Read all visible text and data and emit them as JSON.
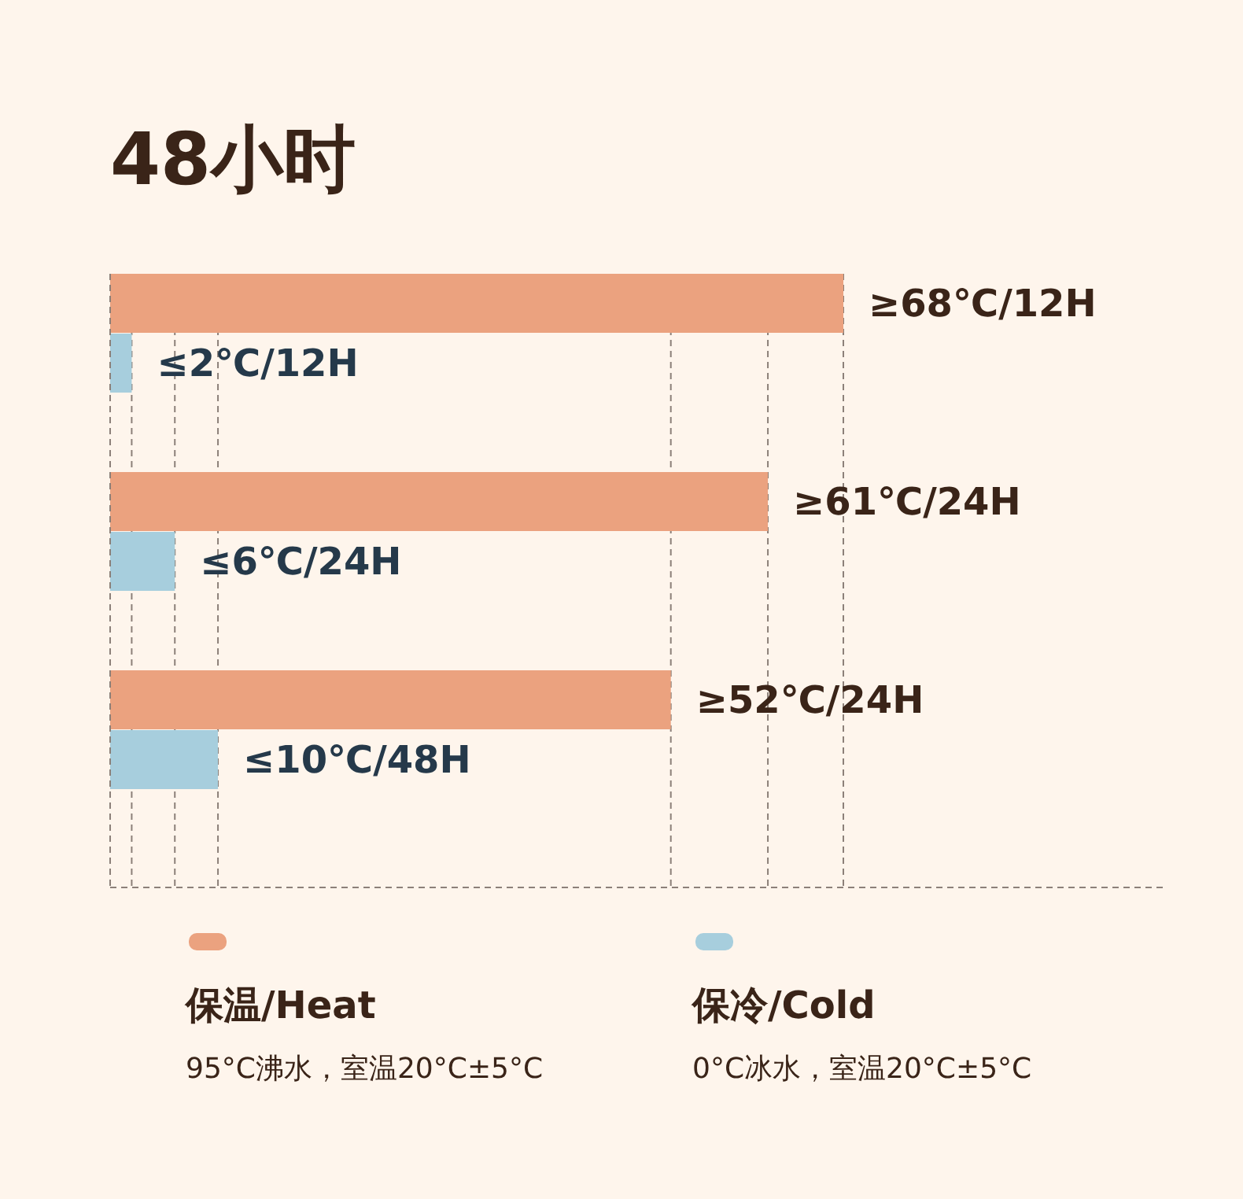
{
  "chart_data": {
    "type": "bar",
    "orientation": "horizontal",
    "xlim": [
      0,
      68
    ],
    "title": "48小时",
    "categories": [
      null,
      null,
      null
    ],
    "series": [
      {
        "name": "保温/Heat",
        "color": "#eba27f",
        "values": [
          68,
          61,
          52
        ],
        "value_labels": [
          "≥68℃/12H",
          "≥61℃/24H",
          "≥52℃/24H"
        ]
      },
      {
        "name": "保冷/Cold",
        "color": "#a7cedd",
        "values": [
          2,
          6,
          10
        ],
        "value_labels": [
          "≤2℃/12H",
          "≤6℃/24H",
          "≤10℃/48H"
        ]
      }
    ],
    "ref_lines": [
      {
        "axis": "x",
        "value": 2,
        "line_style": "dashed",
        "color": "#8c8079"
      },
      {
        "axis": "x",
        "value": 6,
        "line_style": "dashed",
        "color": "#8c8079"
      },
      {
        "axis": "x",
        "value": 10,
        "line_style": "dashed",
        "color": "#8c8079"
      },
      {
        "axis": "x",
        "value": 52,
        "line_style": "dashed",
        "color": "#8c8079"
      },
      {
        "axis": "x",
        "value": 61,
        "line_style": "dashed",
        "color": "#8c8079"
      },
      {
        "axis": "x",
        "value": 68,
        "line_style": "dashed",
        "color": "#8c8079"
      }
    ],
    "legend": "bottom",
    "annotations": [
      "95°C沸水，室温20°C±5°C",
      "0°C冰水，室温20°C±5°C"
    ]
  }
}
